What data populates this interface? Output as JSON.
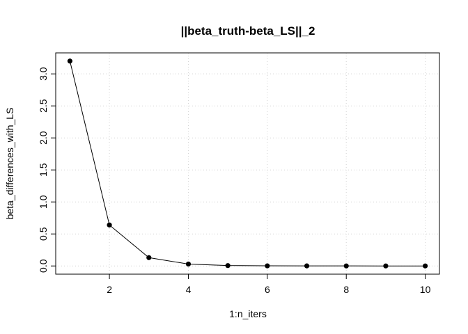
{
  "chart_data": {
    "type": "line",
    "title": "||beta_truth-beta_LS||_2",
    "xlabel": "1:n_iters",
    "ylabel": "beta_differences_with_LS",
    "x": [
      1,
      2,
      3,
      4,
      5,
      6,
      7,
      8,
      9,
      10
    ],
    "series": [
      {
        "values": [
          3.2,
          0.64,
          0.13,
          0.03,
          0.006,
          0.002,
          0.001,
          0.0005,
          0.0003,
          0.0002
        ]
      }
    ],
    "xlim": [
      0.64,
      10.36
    ],
    "ylim": [
      -0.128,
      3.328
    ],
    "xticks": [
      2,
      4,
      6,
      8,
      10
    ],
    "yticks": [
      0.0,
      0.5,
      1.0,
      1.5,
      2.0,
      2.5,
      3.0
    ],
    "xtick_labels": [
      "2",
      "4",
      "6",
      "8",
      "10"
    ],
    "ytick_labels": [
      "0.0",
      "0.5",
      "1.0",
      "1.5",
      "2.0",
      "2.5",
      "3.0"
    ],
    "grid": true,
    "markers": "filled-circle",
    "line_color": "#000000",
    "grid_color": "#d3d3d3"
  }
}
